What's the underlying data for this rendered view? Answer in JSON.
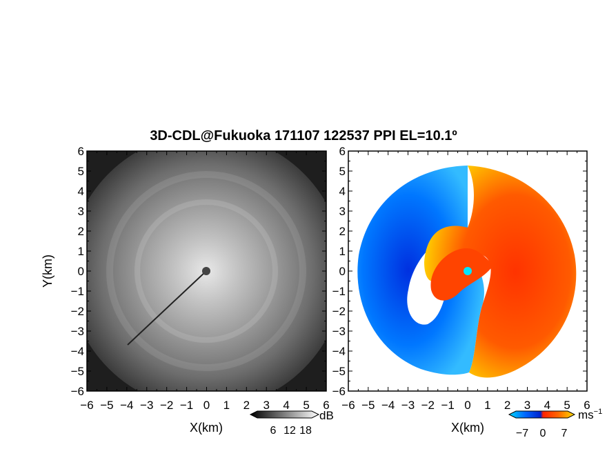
{
  "title": "3D-CDL@Fukuoka 171107 122537 PPI EL=10.1º",
  "chart_data": [
    {
      "type": "heatmap",
      "xlabel": "X(km)",
      "ylabel": "Y(km)",
      "xlim": [
        -6,
        6
      ],
      "ylim": [
        -6,
        6
      ],
      "xticks": [
        "-6",
        "-5",
        "-4",
        "-3",
        "-2",
        "-1",
        "0",
        "1",
        "2",
        "3",
        "4",
        "5",
        "6"
      ],
      "yticks": [
        "-6",
        "-5",
        "-4",
        "-3",
        "-2",
        "-1",
        "0",
        "1",
        "2",
        "3",
        "4",
        "5",
        "6"
      ],
      "colorbar": {
        "unit": "dB",
        "ticks": [
          "6",
          "12",
          "18"
        ],
        "colormap": "grayscale"
      }
    },
    {
      "type": "heatmap",
      "xlabel": "X(km)",
      "ylabel": "",
      "xlim": [
        -6,
        6
      ],
      "ylim": [
        -6,
        6
      ],
      "xticks": [
        "-6",
        "-5",
        "-4",
        "-3",
        "-2",
        "-1",
        "0",
        "1",
        "2",
        "3",
        "4",
        "5",
        "6"
      ],
      "yticks": [
        "-6",
        "-5",
        "-4",
        "-3",
        "-2",
        "-1",
        "0",
        "1",
        "2",
        "3",
        "4",
        "5",
        "6"
      ],
      "colorbar": {
        "unit": "ms",
        "unit_sup": "−1",
        "ticks": [
          "−7",
          "0",
          "7"
        ],
        "colormap": [
          "#00d8ff",
          "#0066ff",
          "#0022cc",
          "#ff2200",
          "#ff6600",
          "#ffdd00"
        ]
      }
    }
  ]
}
